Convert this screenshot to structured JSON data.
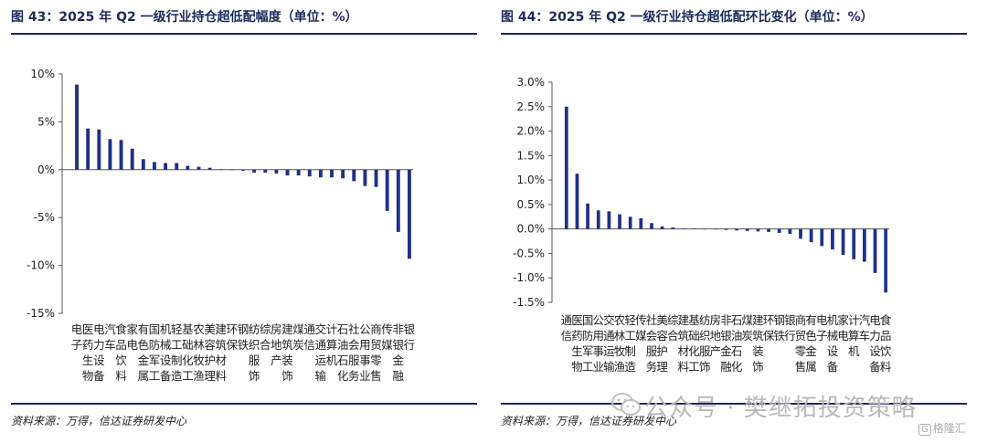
{
  "charts": [
    {
      "title": "图 43：2025 年 Q2 一级行业持仓超低配幅度（单位：%）",
      "source": "资料来源：万得，信达证券研发中心"
    },
    {
      "title": "图 44：2025 年 Q2 一级行业持仓超低配环比变化（单位：%）",
      "source": "资料来源：万得，信达证券研发中心"
    }
  ],
  "watermark": {
    "text": "公众号 · 樊继拓投资策略",
    "logo_text": "格隆汇",
    "icon": "wechat-icon"
  },
  "colors": {
    "bar": "#1f3187",
    "axis": "#555555",
    "title": "#1a2b5c"
  },
  "chart_data": [
    {
      "type": "bar",
      "title": "图 43：2025 年 Q2 一级行业持仓超低配幅度（单位：%）",
      "categories": [
        "电子",
        "医药生物",
        "电力设备",
        "汽车",
        "食品饮料",
        "家电",
        "有色金属",
        "国防军工",
        "机械设备",
        "轻工制造",
        "基础化工",
        "农林牧渔",
        "美容护理",
        "建筑材料",
        "环保",
        "钢铁",
        "纺织服饰",
        "综合",
        "房地产",
        "建筑装饰",
        "煤炭",
        "通信",
        "交通运输",
        "计算机",
        "石油石化",
        "社会服务",
        "公用事业",
        "商贸零售",
        "传媒",
        "非银金融",
        "银行"
      ],
      "values": [
        8.9,
        4.3,
        4.2,
        3.2,
        3.1,
        2.2,
        1.1,
        0.8,
        0.7,
        0.7,
        0.4,
        0.3,
        0.2,
        0.05,
        0.0,
        -0.1,
        -0.3,
        -0.3,
        -0.4,
        -0.6,
        -0.6,
        -0.7,
        -0.8,
        -0.8,
        -0.9,
        -1.2,
        -1.7,
        -1.8,
        -4.3,
        -6.5,
        -9.3
      ],
      "yticks": [
        10,
        5,
        0,
        -5,
        -10,
        -15
      ],
      "ytick_labels": [
        "10%",
        "5%",
        "0%",
        "-5%",
        "-10%",
        "-15%"
      ],
      "ylim": [
        -15,
        10
      ],
      "xlabel": "",
      "ylabel": ""
    },
    {
      "type": "bar",
      "title": "图 44：2025 年 Q2 一级行业持仓超低配环比变化（单位：%）",
      "categories": [
        "通信",
        "医药生物",
        "国防军工",
        "公用事业",
        "交通运输",
        "农林牧渔",
        "轻工制造",
        "传媒",
        "社会服务",
        "美容护理",
        "综合",
        "建筑材料",
        "基础化工",
        "纺织服饰",
        "房地产",
        "非银金融",
        "石油石化",
        "煤炭",
        "建筑装饰",
        "环保",
        "钢铁",
        "银行",
        "商贸零售",
        "有色金属",
        "电子",
        "机械设备",
        "家电",
        "计算机",
        "汽车",
        "电力设备",
        "食品饮料"
      ],
      "values": [
        2.5,
        1.13,
        0.52,
        0.38,
        0.36,
        0.3,
        0.25,
        0.22,
        0.12,
        0.05,
        0.03,
        0.01,
        0.01,
        0.0,
        -0.01,
        -0.02,
        -0.03,
        -0.04,
        -0.05,
        -0.06,
        -0.08,
        -0.1,
        -0.2,
        -0.27,
        -0.35,
        -0.42,
        -0.53,
        -0.62,
        -0.67,
        -0.9,
        -1.3
      ],
      "yticks": [
        3.0,
        2.5,
        2.0,
        1.5,
        1.0,
        0.5,
        0.0,
        -0.5,
        -1.0,
        -1.5
      ],
      "ytick_labels": [
        "3.0%",
        "2.5%",
        "2.0%",
        "1.5%",
        "1.0%",
        "0.5%",
        "0.0%",
        "-0.5%",
        "-1.0%",
        "-1.5%"
      ],
      "ylim": [
        -1.5,
        3.0
      ],
      "xlabel": "",
      "ylabel": ""
    }
  ]
}
